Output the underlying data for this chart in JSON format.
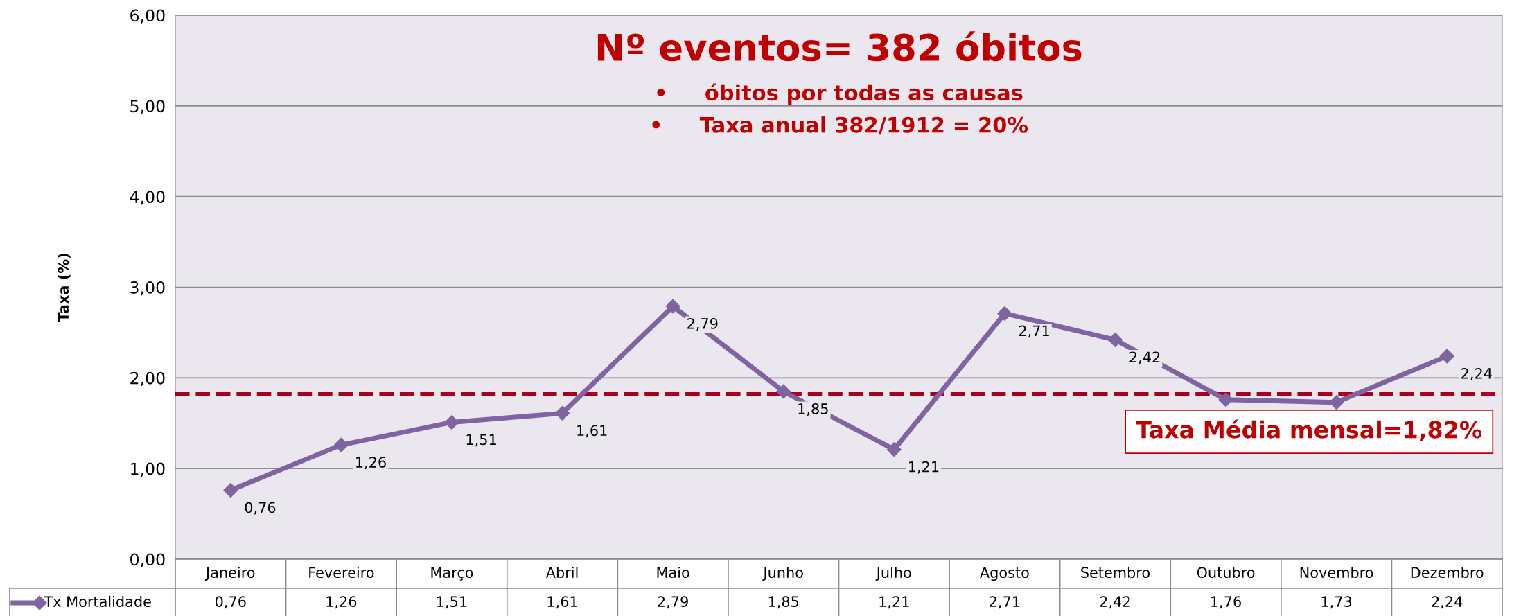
{
  "chart_data": {
    "type": "line",
    "title": "Nº eventos= 382 óbitos",
    "ylabel": "Taxa (%)",
    "annotations": [
      "•     óbitos por todas as causas",
      "•     Taxa anual 382/1912 = 20%"
    ],
    "categories": [
      "Janeiro",
      "Fevereiro",
      "Março",
      "Abril",
      "Maio",
      "Junho",
      "Julho",
      "Agosto",
      "Setembro",
      "Outubro",
      "Novembro",
      "Dezembro"
    ],
    "series": [
      {
        "name": "Tx Mortalidade",
        "color": "#8064a2",
        "values": [
          0.76,
          1.26,
          1.51,
          1.61,
          2.79,
          1.85,
          1.21,
          2.71,
          2.42,
          1.76,
          1.73,
          2.24
        ],
        "value_labels": [
          "0,76",
          "1,26",
          "1,51",
          "1,61",
          "2,79",
          "1,85",
          "1,21",
          "2,71",
          "2,42",
          "1,76",
          "1,73",
          "2,24"
        ]
      }
    ],
    "ylim": [
      0,
      6
    ],
    "yticks": [
      {
        "value": 0,
        "label": "0,00"
      },
      {
        "value": 1,
        "label": "1,00"
      },
      {
        "value": 2,
        "label": "2,00"
      },
      {
        "value": 3,
        "label": "3,00"
      },
      {
        "value": 4,
        "label": "4,00"
      },
      {
        "value": 5,
        "label": "5,00"
      },
      {
        "value": 6,
        "label": "6,00"
      }
    ],
    "ref_lines": [
      {
        "axis": "y",
        "value": 1.82,
        "label": "Taxa Média mensal=1,82%",
        "color": "#a50021",
        "line_style": "dashed"
      }
    ],
    "grid": "y",
    "marker": "diamond",
    "line_style": "solid",
    "legend": "bottom left"
  }
}
